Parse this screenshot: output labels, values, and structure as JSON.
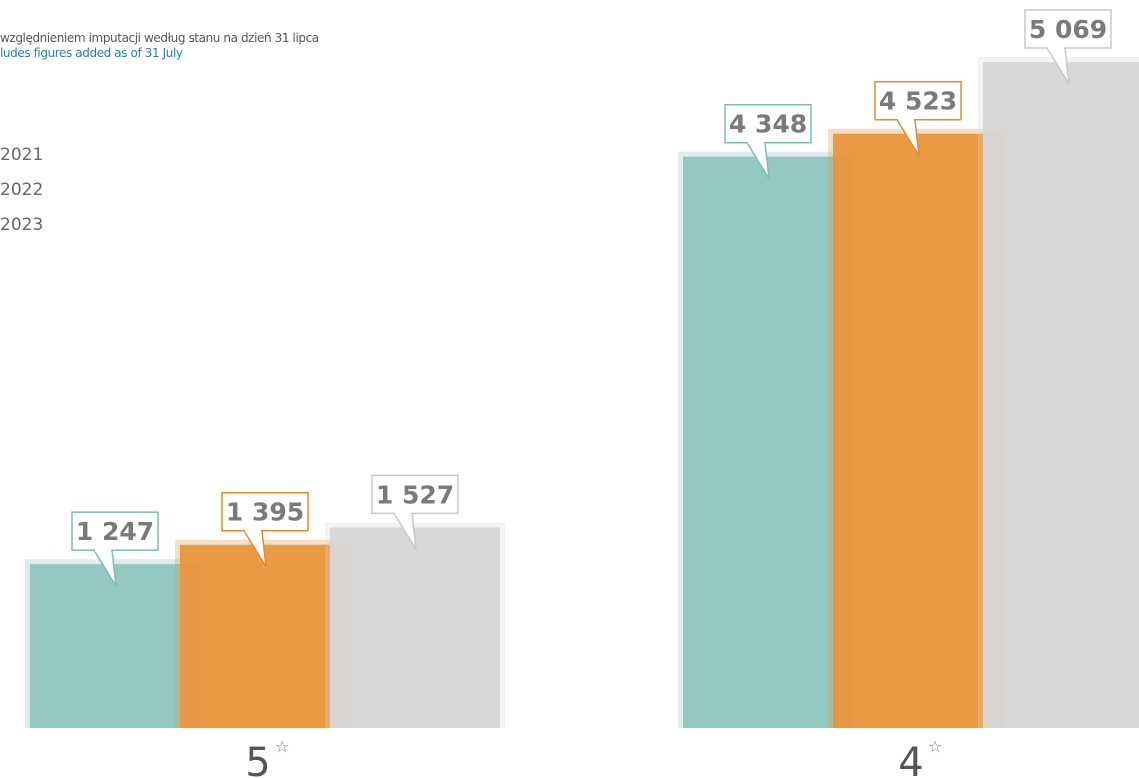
{
  "note": {
    "pl": "względnieniem imputacji według stanu na dzień 31 lipca",
    "en": "ludes figures added as of 31 July"
  },
  "legend": [
    {
      "label": "2021",
      "color": "#8dc5c0"
    },
    {
      "label": "2022",
      "color": "#e8963c"
    },
    {
      "label": "2023",
      "color": "#d6d6d6"
    }
  ],
  "chart_data": {
    "type": "bar",
    "categories": [
      "5",
      "4"
    ],
    "category_suffix": "☆",
    "series": [
      {
        "name": "2021",
        "color": "#8dc5c0",
        "values": [
          1247,
          4348
        ]
      },
      {
        "name": "2022",
        "color": "#e8963c",
        "values": [
          1395,
          4523
        ]
      },
      {
        "name": "2023",
        "color": "#d6d6d6",
        "values": [
          1527,
          5069
        ]
      }
    ],
    "value_labels": [
      [
        "1 247",
        "4 348"
      ],
      [
        "1 395",
        "4 523"
      ],
      [
        "1 527",
        "5 069"
      ]
    ],
    "ylim": [
      0,
      5069
    ],
    "legend_position": "top-left"
  }
}
